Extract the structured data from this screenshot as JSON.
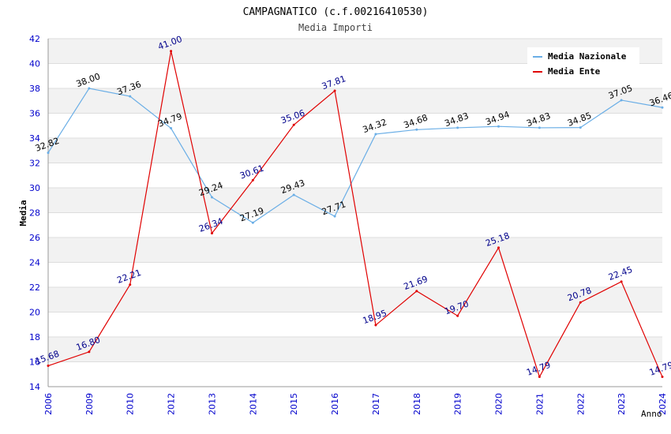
{
  "chart_data": {
    "type": "line",
    "title": "CAMPAGNATICO (c.f.00216410530)",
    "subtitle": "Media Importi",
    "xlabel": "Anno",
    "ylabel": "Media",
    "ylim": [
      14,
      42
    ],
    "ytick_step": 2,
    "categories": [
      "2006",
      "2009",
      "2010",
      "2012",
      "2013",
      "2014",
      "2015",
      "2016",
      "2017",
      "2018",
      "2019",
      "2020",
      "2021",
      "2022",
      "2023",
      "2024"
    ],
    "series": [
      {
        "name": "Media Nazionale",
        "color": "#6aaee6",
        "label_color": "#000000",
        "values": [
          32.82,
          38.0,
          37.36,
          34.79,
          29.24,
          27.19,
          29.43,
          27.71,
          34.32,
          34.68,
          34.83,
          34.94,
          34.83,
          34.85,
          37.05,
          36.46
        ],
        "labels": [
          "32.82",
          "38.00",
          "37.36",
          "34.79",
          "29.24",
          "27.19",
          "29.43",
          "27.71",
          "34.32",
          "34.68",
          "34.83",
          "34.94",
          "34.83",
          "34.85",
          "37.05",
          "36.46"
        ]
      },
      {
        "name": "Media Ente",
        "color": "#e00000",
        "label_color": "#00008b",
        "values": [
          15.68,
          16.8,
          22.21,
          41.0,
          26.34,
          30.61,
          35.06,
          37.81,
          18.95,
          21.69,
          19.7,
          25.18,
          14.79,
          20.78,
          22.45,
          14.79
        ],
        "labels": [
          "15.68",
          "16.80",
          "22.21",
          "41.00",
          "26.34",
          "30.61",
          "35.06",
          "37.81",
          "18.95",
          "21.69",
          "19.70",
          "25.18",
          "14.79",
          "20.78",
          "22.45",
          "14.79"
        ]
      }
    ],
    "legend_position": "top-right",
    "grid": true
  },
  "colors": {
    "axis_tick_text": "#0000cc",
    "band_fill": "#f2f2f2",
    "grid_line": "#dddddd"
  }
}
